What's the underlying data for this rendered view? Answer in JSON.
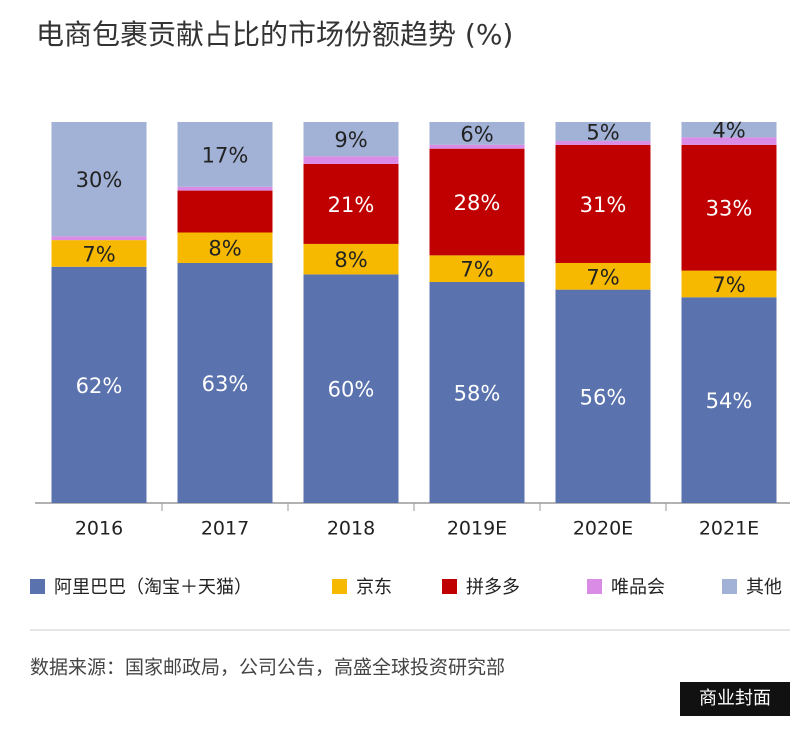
{
  "chart_data": {
    "type": "stacked_bar",
    "title": "电商包裹贡献占比的市场份额趋势 (%)",
    "categories": [
      "2016",
      "2017",
      "2018",
      "2019E",
      "2020E",
      "2021E"
    ],
    "series": [
      {
        "name": "阿里巴巴（淘宝＋天猫）",
        "color": "#5a72ad",
        "values": [
          62,
          63,
          60,
          58,
          56,
          54
        ],
        "value_labels": [
          "62%",
          "63%",
          "60%",
          "58%",
          "56%",
          "54%"
        ]
      },
      {
        "name": "京东",
        "color": "#f6b900",
        "values": [
          7,
          8,
          8,
          7,
          7,
          7
        ],
        "value_labels": [
          "7%",
          "8%",
          "8%",
          "7%",
          "7%",
          "7%"
        ]
      },
      {
        "name": "拼多多",
        "color": "#c00000",
        "values": [
          0,
          11,
          21,
          28,
          31,
          33
        ],
        "value_labels": [
          null,
          null,
          "21%",
          "28%",
          "31%",
          "33%"
        ]
      },
      {
        "name": "唯品会",
        "color": "#d98be6",
        "values": [
          1,
          1,
          2,
          1,
          1,
          2
        ],
        "value_labels": [
          null,
          null,
          null,
          null,
          null,
          null
        ]
      },
      {
        "name": "其他",
        "color": "#a2b1d6",
        "values": [
          30,
          17,
          9,
          6,
          5,
          4
        ],
        "value_labels": [
          "30%",
          "17%",
          "9%",
          "6%",
          "5%",
          "4%"
        ]
      }
    ],
    "ylim": [
      0,
      100
    ],
    "source": "数据来源：国家邮政局，公司公告，高盛全球投资研究部",
    "watermark": "商业封面"
  }
}
